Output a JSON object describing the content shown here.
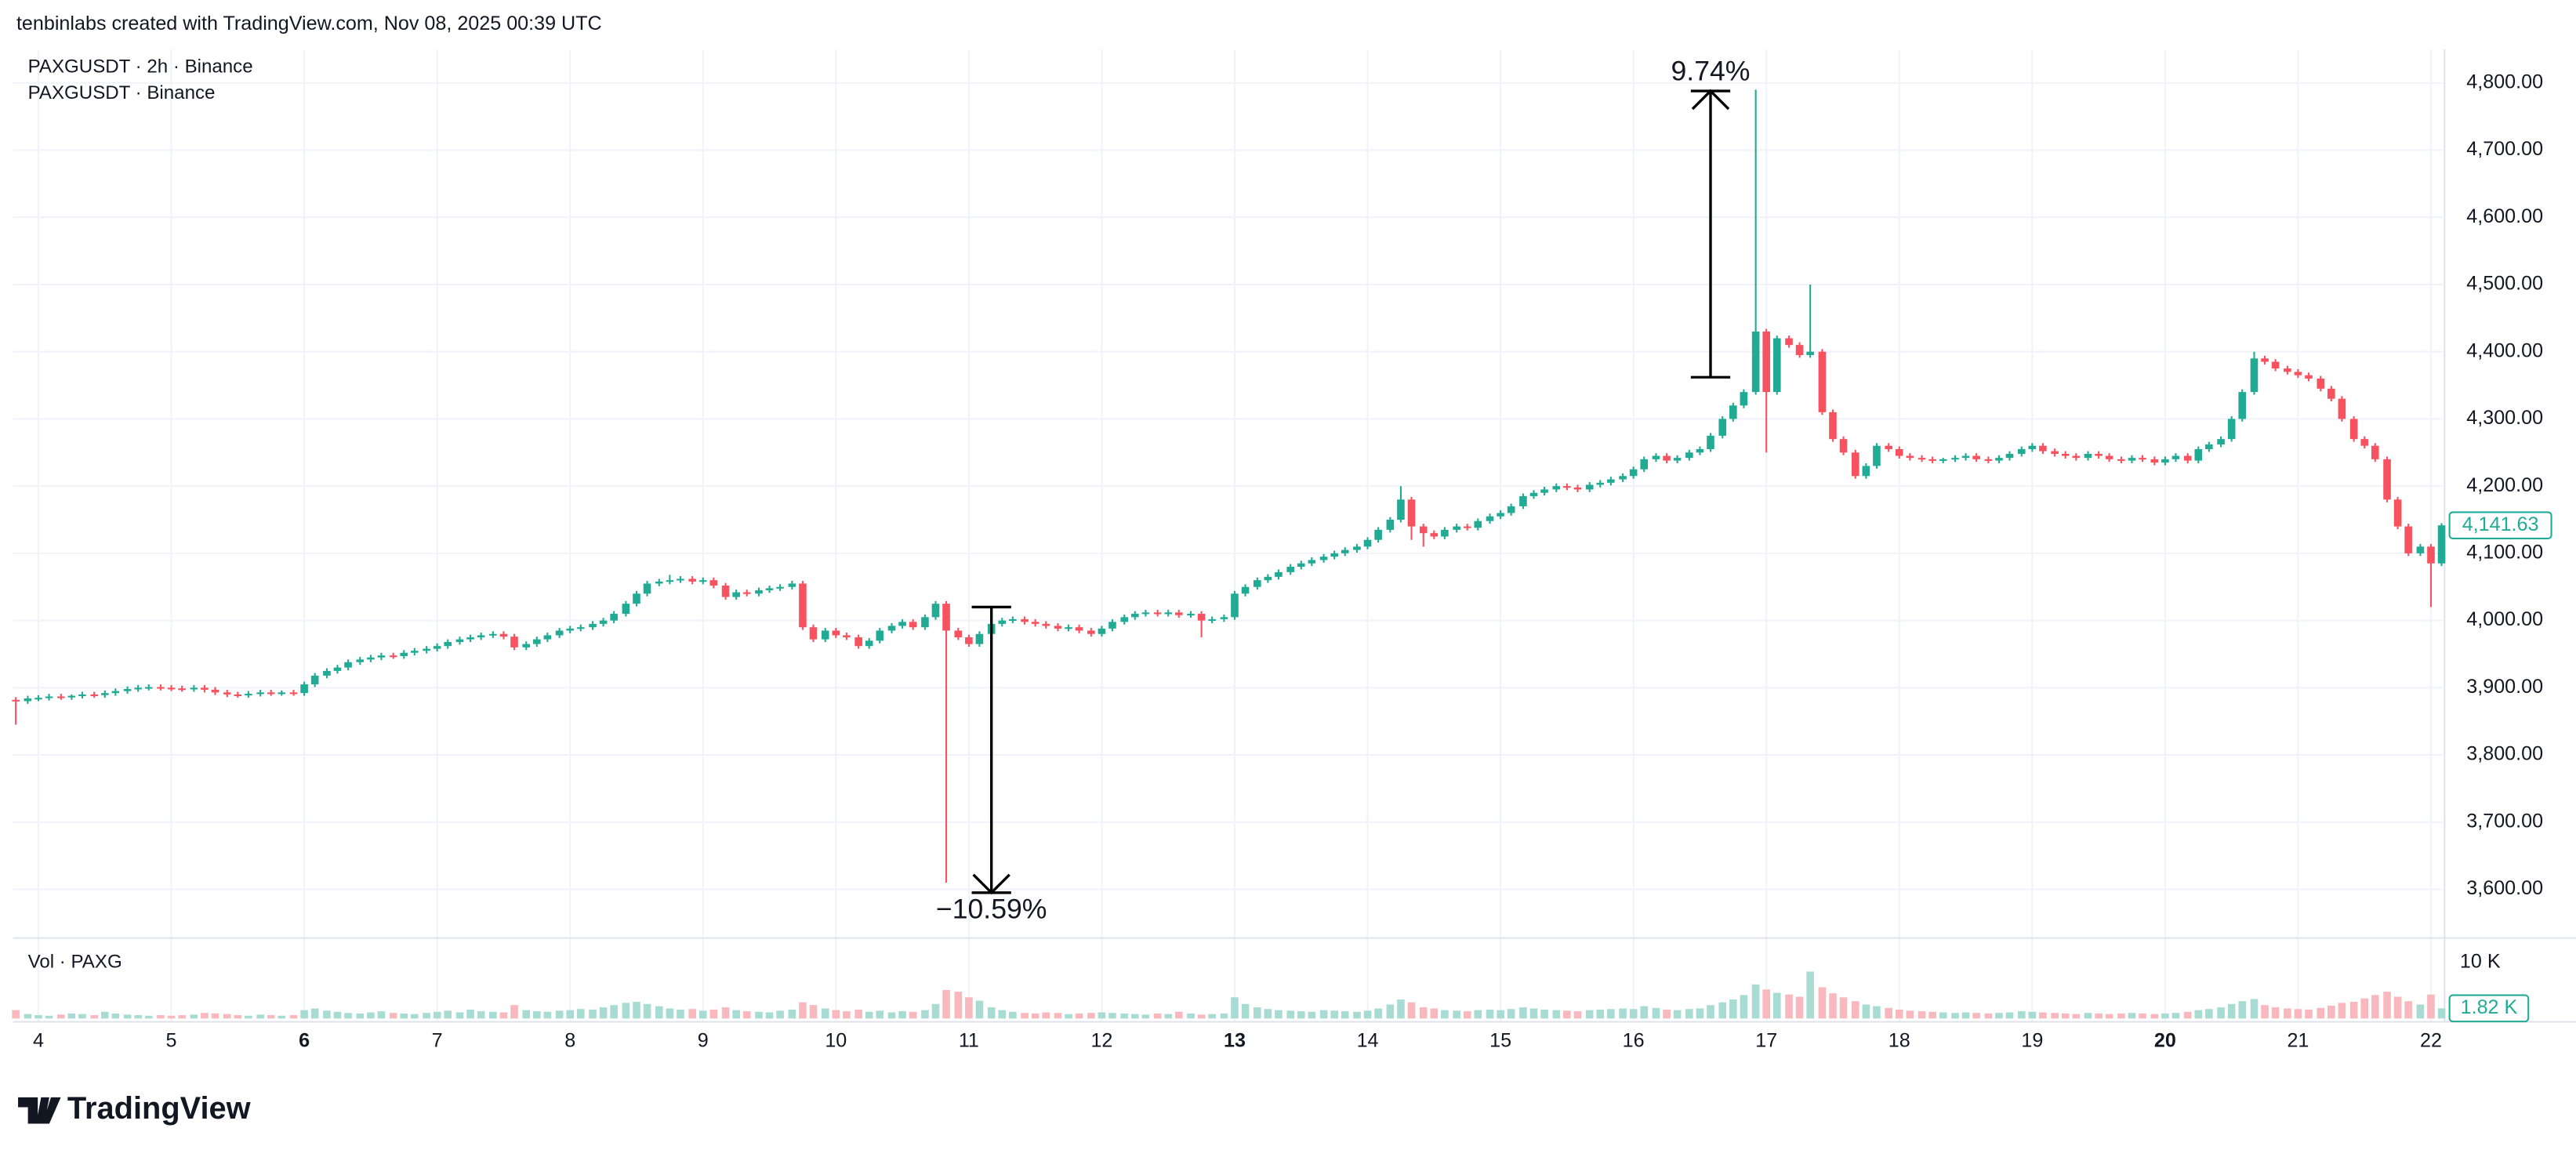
{
  "header": "tenbinlabs created with TradingView.com, Nov 08, 2025 00:39 UTC",
  "logo": "TradingView",
  "chart_data": {
    "type": "candlestick",
    "legend": [
      "PAXGUSDT · 2h · Binance",
      "PAXGUSDT · Binance"
    ],
    "up_color": "#22ab94",
    "down_color": "#f7525f",
    "xlim": [
      3.81,
      22.09
    ],
    "xticks": [
      4,
      5,
      6,
      7,
      8,
      9,
      10,
      11,
      12,
      13,
      14,
      15,
      16,
      17,
      18,
      19,
      20,
      21,
      22
    ],
    "bold_xticks": [
      6,
      13,
      20
    ],
    "ylim": [
      3530,
      4850
    ],
    "yticks": [
      {
        "value": 3600,
        "label": "3,600.00"
      },
      {
        "value": 3700,
        "label": "3,700.00"
      },
      {
        "value": 3800,
        "label": "3,800.00"
      },
      {
        "value": 3900,
        "label": "3,900.00"
      },
      {
        "value": 4000,
        "label": "4,000.00"
      },
      {
        "value": 4100,
        "label": "4,100.00"
      },
      {
        "value": 4200,
        "label": "4,200.00"
      },
      {
        "value": 4300,
        "label": "4,300.00"
      },
      {
        "value": 4400,
        "label": "4,400.00"
      },
      {
        "value": 4500,
        "label": "4,500.00"
      },
      {
        "value": 4600,
        "label": "4,600.00"
      },
      {
        "value": 4700,
        "label": "4,700.00"
      },
      {
        "value": 4800,
        "label": "4,800.00"
      }
    ],
    "last_price_label": "4,141.63",
    "x": [
      3.83,
      3.92,
      4,
      4.08,
      4.17,
      4.25,
      4.33,
      4.42,
      4.5,
      4.58,
      4.67,
      4.75,
      4.83,
      4.92,
      5,
      5.08,
      5.17,
      5.25,
      5.33,
      5.42,
      5.5,
      5.58,
      5.67,
      5.75,
      5.83,
      5.92,
      6,
      6.08,
      6.17,
      6.25,
      6.33,
      6.42,
      6.5,
      6.58,
      6.67,
      6.75,
      6.83,
      6.92,
      7,
      7.08,
      7.17,
      7.25,
      7.33,
      7.42,
      7.5,
      7.58,
      7.67,
      7.75,
      7.83,
      7.92,
      8,
      8.08,
      8.17,
      8.25,
      8.33,
      8.42,
      8.5,
      8.58,
      8.67,
      8.75,
      8.83,
      8.92,
      9,
      9.08,
      9.17,
      9.25,
      9.33,
      9.42,
      9.5,
      9.58,
      9.67,
      9.75,
      9.83,
      9.92,
      10,
      10.08,
      10.17,
      10.25,
      10.33,
      10.42,
      10.5,
      10.58,
      10.67,
      10.75,
      10.83,
      10.92,
      11,
      11.08,
      11.17,
      11.25,
      11.33,
      11.42,
      11.5,
      11.58,
      11.67,
      11.75,
      11.83,
      11.92,
      12,
      12.08,
      12.17,
      12.25,
      12.33,
      12.42,
      12.5,
      12.58,
      12.67,
      12.75,
      12.83,
      12.92,
      13,
      13.08,
      13.17,
      13.25,
      13.33,
      13.42,
      13.5,
      13.58,
      13.67,
      13.75,
      13.83,
      13.92,
      14,
      14.08,
      14.17,
      14.25,
      14.33,
      14.42,
      14.5,
      14.58,
      14.67,
      14.75,
      14.83,
      14.92,
      15,
      15.08,
      15.17,
      15.25,
      15.33,
      15.42,
      15.5,
      15.58,
      15.67,
      15.75,
      15.83,
      15.92,
      16,
      16.08,
      16.17,
      16.25,
      16.33,
      16.42,
      16.5,
      16.58,
      16.67,
      16.75,
      16.83,
      16.92,
      17,
      17.08,
      17.17,
      17.25,
      17.33,
      17.42,
      17.5,
      17.58,
      17.67,
      17.75,
      17.83,
      17.92,
      18,
      18.08,
      18.17,
      18.25,
      18.33,
      18.42,
      18.5,
      18.58,
      18.67,
      18.75,
      18.83,
      18.92,
      19,
      19.08,
      19.17,
      19.25,
      19.33,
      19.42,
      19.5,
      19.58,
      19.67,
      19.75,
      19.83,
      19.92,
      20,
      20.08,
      20.17,
      20.25,
      20.33,
      20.42,
      20.5,
      20.58,
      20.67,
      20.75,
      20.83,
      20.92,
      21,
      21.08,
      21.17,
      21.25,
      21.33,
      21.42,
      21.5,
      21.58,
      21.67,
      21.75,
      21.83,
      21.92,
      22,
      22.08
    ],
    "open": [
      3882,
      3880,
      3884,
      3885,
      3887,
      3886,
      3888,
      3890,
      3889,
      3892,
      3895,
      3898,
      3900,
      3901,
      3900,
      3899,
      3898,
      3900,
      3897,
      3893,
      3890,
      3889,
      3891,
      3893,
      3892,
      3893,
      3892,
      3905,
      3918,
      3925,
      3930,
      3938,
      3942,
      3945,
      3948,
      3947,
      3952,
      3955,
      3958,
      3962,
      3968,
      3972,
      3975,
      3978,
      3980,
      3976,
      3960,
      3965,
      3972,
      3978,
      3985,
      3988,
      3990,
      3995,
      4000,
      4010,
      4025,
      4040,
      4055,
      4058,
      4060,
      4062,
      4058,
      4060,
      4052,
      4035,
      4042,
      4040,
      4045,
      4048,
      4050,
      4055,
      3990,
      3972,
      3985,
      3978,
      3975,
      3962,
      3970,
      3985,
      3992,
      3998,
      3990,
      4005,
      4025,
      3985,
      3975,
      3965,
      3980,
      3995,
      4000,
      4002,
      3998,
      3995,
      3992,
      3988,
      3990,
      3985,
      3980,
      3988,
      3998,
      4005,
      4010,
      4012,
      4010,
      4012,
      4008,
      4010,
      4000,
      4002,
      4005,
      4040,
      4050,
      4060,
      4065,
      4072,
      4080,
      4085,
      4090,
      4095,
      4100,
      4105,
      4110,
      4120,
      4135,
      4150,
      4180,
      4140,
      4130,
      4125,
      4135,
      4140,
      4138,
      4148,
      4155,
      4160,
      4170,
      4185,
      4190,
      4195,
      4200,
      4198,
      4195,
      4202,
      4205,
      4210,
      4215,
      4225,
      4240,
      4245,
      4238,
      4242,
      4250,
      4255,
      4275,
      4300,
      4320,
      4340,
      4430,
      4340,
      4420,
      4410,
      4395,
      4400,
      4310,
      4270,
      4250,
      4215,
      4230,
      4260,
      4255,
      4245,
      4242,
      4240,
      4238,
      4240,
      4242,
      4245,
      4240,
      4238,
      4242,
      4248,
      4255,
      4260,
      4252,
      4248,
      4245,
      4242,
      4248,
      4245,
      4240,
      4238,
      4242,
      4240,
      4235,
      4240,
      4245,
      4238,
      4255,
      4262,
      4270,
      4300,
      4340,
      4390,
      4385,
      4375,
      4370,
      4365,
      4360,
      4345,
      4330,
      4300,
      4270,
      4260,
      4240,
      4180,
      4140,
      4100,
      4110,
      4085
    ],
    "high": [
      3886,
      3888,
      3889,
      3891,
      3891,
      3890,
      3894,
      3894,
      3896,
      3899,
      3902,
      3904,
      3905,
      3905,
      3904,
      3903,
      3904,
      3904,
      3901,
      3897,
      3894,
      3895,
      3897,
      3897,
      3896,
      3897,
      3909,
      3922,
      3929,
      3934,
      3942,
      3946,
      3949,
      3952,
      3952,
      3956,
      3959,
      3962,
      3966,
      3972,
      3976,
      3979,
      3982,
      3984,
      3984,
      3980,
      3969,
      3976,
      3982,
      3989,
      3992,
      3994,
      3999,
      4004,
      4014,
      4029,
      4044,
      4059,
      4062,
      4068,
      4066,
      4066,
      4064,
      4064,
      4056,
      4046,
      4046,
      4049,
      4052,
      4054,
      4059,
      4059,
      3994,
      3989,
      3989,
      3982,
      3979,
      3974,
      3989,
      3996,
      4002,
      4002,
      4009,
      4029,
      4029,
      3989,
      3979,
      3984,
      3999,
      4004,
      4006,
      4006,
      4002,
      3999,
      3996,
      3994,
      3994,
      3989,
      3992,
      4002,
      4009,
      4014,
      4016,
      4016,
      4016,
      4016,
      4014,
      4014,
      4006,
      4009,
      4044,
      4054,
      4064,
      4069,
      4076,
      4084,
      4089,
      4094,
      4099,
      4104,
      4109,
      4114,
      4124,
      4139,
      4154,
      4200,
      4184,
      4144,
      4134,
      4139,
      4144,
      4144,
      4152,
      4159,
      4164,
      4174,
      4189,
      4194,
      4199,
      4204,
      4204,
      4202,
      4206,
      4209,
      4214,
      4219,
      4229,
      4244,
      4249,
      4249,
      4246,
      4254,
      4259,
      4279,
      4304,
      4324,
      4344,
      4790,
      4434,
      4424,
      4424,
      4414,
      4500,
      4404,
      4314,
      4274,
      4254,
      4234,
      4264,
      4264,
      4259,
      4249,
      4246,
      4244,
      4242,
      4246,
      4249,
      4249,
      4244,
      4246,
      4252,
      4259,
      4264,
      4264,
      4256,
      4252,
      4249,
      4252,
      4252,
      4249,
      4244,
      4246,
      4246,
      4244,
      4244,
      4249,
      4249,
      4259,
      4266,
      4274,
      4304,
      4344,
      4400,
      4394,
      4389,
      4379,
      4374,
      4369,
      4364,
      4349,
      4334,
      4304,
      4274,
      4264,
      4244,
      4184,
      4144,
      4114,
      4114,
      4145
    ],
    "low": [
      3845,
      3876,
      3880,
      3881,
      3882,
      3882,
      3884,
      3885,
      3885,
      3888,
      3891,
      3894,
      3896,
      3896,
      3895,
      3894,
      3894,
      3893,
      3889,
      3886,
      3885,
      3885,
      3887,
      3888,
      3888,
      3888,
      3888,
      3901,
      3914,
      3921,
      3926,
      3934,
      3938,
      3941,
      3943,
      3943,
      3948,
      3951,
      3954,
      3958,
      3964,
      3968,
      3971,
      3974,
      3972,
      3956,
      3956,
      3961,
      3968,
      3974,
      3981,
      3984,
      3986,
      3991,
      3996,
      4006,
      4021,
      4036,
      4051,
      4054,
      4056,
      4054,
      4054,
      4048,
      4031,
      4031,
      4036,
      4036,
      4041,
      4044,
      4046,
      3986,
      3968,
      3968,
      3974,
      3971,
      3958,
      3958,
      3966,
      3981,
      3988,
      3986,
      3986,
      4001,
      3610,
      3971,
      3961,
      3961,
      3976,
      3991,
      3996,
      3994,
      3991,
      3988,
      3984,
      3984,
      3981,
      3976,
      3976,
      3984,
      3994,
      4001,
      4006,
      4006,
      4006,
      4004,
      4004,
      3975,
      3996,
      3998,
      4001,
      4036,
      4046,
      4056,
      4061,
      4068,
      4076,
      4081,
      4086,
      4091,
      4096,
      4101,
      4106,
      4116,
      4131,
      4146,
      4120,
      4110,
      4121,
      4121,
      4131,
      4134,
      4134,
      4144,
      4151,
      4156,
      4166,
      4181,
      4186,
      4191,
      4194,
      4191,
      4191,
      4198,
      4201,
      4206,
      4211,
      4221,
      4236,
      4234,
      4234,
      4238,
      4246,
      4251,
      4271,
      4296,
      4316,
      4336,
      4250,
      4336,
      4406,
      4391,
      4391,
      4306,
      4266,
      4246,
      4211,
      4211,
      4226,
      4251,
      4241,
      4238,
      4236,
      4234,
      4234,
      4236,
      4238,
      4236,
      4234,
      4234,
      4238,
      4244,
      4251,
      4248,
      4244,
      4241,
      4238,
      4238,
      4241,
      4236,
      4234,
      4234,
      4236,
      4231,
      4231,
      4236,
      4234,
      4234,
      4251,
      4258,
      4266,
      4296,
      4336,
      4381,
      4371,
      4366,
      4361,
      4356,
      4341,
      4326,
      4296,
      4266,
      4256,
      4236,
      4176,
      4136,
      4096,
      4096,
      4020,
      4081
    ],
    "close": [
      3880,
      3884,
      3885,
      3887,
      3886,
      3888,
      3890,
      3889,
      3892,
      3895,
      3898,
      3900,
      3901,
      3900,
      3899,
      3898,
      3900,
      3897,
      3893,
      3890,
      3889,
      3891,
      3893,
      3892,
      3893,
      3892,
      3905,
      3918,
      3925,
      3930,
      3938,
      3942,
      3945,
      3948,
      3947,
      3952,
      3955,
      3958,
      3962,
      3968,
      3972,
      3975,
      3978,
      3980,
      3976,
      3960,
      3965,
      3972,
      3978,
      3985,
      3988,
      3990,
      3995,
      4000,
      4010,
      4025,
      4040,
      4055,
      4058,
      4060,
      4062,
      4058,
      4060,
      4052,
      4035,
      4042,
      4040,
      4045,
      4048,
      4050,
      4055,
      3990,
      3972,
      3985,
      3978,
      3975,
      3962,
      3970,
      3985,
      3992,
      3998,
      3990,
      4005,
      4025,
      3985,
      3975,
      3965,
      3980,
      3995,
      4000,
      4002,
      3998,
      3995,
      3992,
      3988,
      3990,
      3985,
      3980,
      3988,
      3998,
      4005,
      4010,
      4012,
      4010,
      4012,
      4008,
      4010,
      4000,
      4002,
      4005,
      4040,
      4050,
      4060,
      4065,
      4072,
      4080,
      4085,
      4090,
      4095,
      4100,
      4105,
      4110,
      4120,
      4135,
      4150,
      4180,
      4140,
      4130,
      4125,
      4135,
      4140,
      4138,
      4148,
      4155,
      4160,
      4170,
      4185,
      4190,
      4195,
      4200,
      4198,
      4195,
      4202,
      4205,
      4210,
      4215,
      4225,
      4240,
      4245,
      4238,
      4242,
      4250,
      4255,
      4275,
      4300,
      4320,
      4340,
      4430,
      4340,
      4420,
      4410,
      4395,
      4400,
      4310,
      4270,
      4250,
      4215,
      4230,
      4260,
      4255,
      4245,
      4242,
      4240,
      4238,
      4240,
      4242,
      4245,
      4240,
      4238,
      4242,
      4248,
      4255,
      4260,
      4252,
      4248,
      4245,
      4242,
      4248,
      4245,
      4240,
      4238,
      4242,
      4240,
      4235,
      4240,
      4245,
      4238,
      4255,
      4262,
      4270,
      4300,
      4340,
      4390,
      4385,
      4375,
      4370,
      4365,
      4360,
      4345,
      4330,
      4300,
      4270,
      4260,
      4240,
      4180,
      4140,
      4100,
      4110,
      4085,
      4141.63
    ],
    "volume": {
      "title": "Vol · PAXG",
      "ylim": [
        0,
        10000
      ],
      "yticks": [
        {
          "value": 10000,
          "label": "10 K"
        }
      ],
      "last_label": "1.82 K",
      "up_color": "#a8dcd3",
      "down_color": "#f9b8be",
      "values": [
        1500,
        800,
        600,
        500,
        700,
        900,
        800,
        600,
        1200,
        900,
        700,
        600,
        500,
        600,
        500,
        600,
        700,
        1000,
        900,
        800,
        600,
        500,
        700,
        600,
        500,
        600,
        1500,
        1800,
        1400,
        1200,
        1000,
        900,
        1100,
        1300,
        1000,
        900,
        800,
        1000,
        1200,
        1400,
        1100,
        1600,
        1300,
        1200,
        1100,
        2400,
        1500,
        1300,
        1200,
        1400,
        1500,
        1700,
        1600,
        2000,
        2400,
        2800,
        3000,
        2600,
        2200,
        1800,
        1600,
        1700,
        1400,
        1600,
        2000,
        1500,
        1300,
        1200,
        1100,
        1400,
        1600,
        2900,
        2400,
        1800,
        1500,
        1300,
        1600,
        1200,
        1400,
        1100,
        1300,
        1200,
        1500,
        2600,
        5100,
        4800,
        3800,
        3200,
        2000,
        1500,
        1200,
        1000,
        900,
        1100,
        1000,
        800,
        900,
        1000,
        1100,
        1000,
        900,
        800,
        700,
        900,
        800,
        1200,
        900,
        700,
        800,
        900,
        3800,
        2600,
        2000,
        1700,
        1500,
        1400,
        1300,
        1200,
        1500,
        1400,
        1300,
        1200,
        1400,
        1800,
        2500,
        3400,
        2900,
        2000,
        1800,
        1500,
        1400,
        1300,
        1500,
        1600,
        1500,
        1700,
        2000,
        1800,
        1600,
        1500,
        1400,
        1300,
        1500,
        1600,
        1700,
        1800,
        1700,
        2200,
        1900,
        1600,
        1500,
        1700,
        1800,
        2400,
        2900,
        3400,
        4200,
        6100,
        5200,
        4600,
        4300,
        3900,
        8400,
        5600,
        4500,
        3800,
        3100,
        2500,
        2200,
        1900,
        1600,
        1400,
        1300,
        1200,
        1100,
        1000,
        1100,
        1000,
        900,
        1000,
        1100,
        1300,
        1200,
        1100,
        1000,
        900,
        800,
        1000,
        900,
        800,
        900,
        1000,
        900,
        800,
        900,
        1000,
        1200,
        1500,
        1700,
        2000,
        2600,
        3100,
        3500,
        2400,
        2000,
        1800,
        1700,
        1600,
        1900,
        2300,
        2800,
        3000,
        3600,
        4200,
        4800,
        3900,
        3100,
        2500,
        4300,
        1820
      ]
    },
    "annotations": [
      {
        "label": "9.74%",
        "from": 4362,
        "to": 4788,
        "x": 16.58
      },
      {
        "label": "−10.59%",
        "from": 4020,
        "to": 3595,
        "x": 11.17
      }
    ]
  }
}
